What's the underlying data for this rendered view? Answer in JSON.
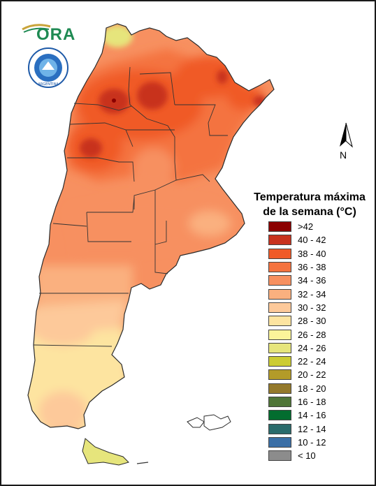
{
  "logo": {
    "text": "ORA",
    "icon": "ora-logo-icon"
  },
  "seal": {
    "icon": "smn-seal-icon",
    "text": "ARGENTINA"
  },
  "north_arrow": {
    "label": "N",
    "icon": "north-arrow-icon"
  },
  "legend": {
    "title_line1": "Temperatura máxima",
    "title_line2": "de la semana (°C)",
    "items": [
      {
        "label": ">42",
        "color": "#8b0000"
      },
      {
        "label": "40 - 42",
        "color": "#c8321e"
      },
      {
        "label": "38 - 40",
        "color": "#f05a28"
      },
      {
        "label": "36 - 38",
        "color": "#f4733f"
      },
      {
        "label": "34 - 36",
        "color": "#f79060"
      },
      {
        "label": "32 - 34",
        "color": "#fab07f"
      },
      {
        "label": "30 - 32",
        "color": "#fdc99a"
      },
      {
        "label": "28 - 30",
        "color": "#fde4a0"
      },
      {
        "label": "26 - 28",
        "color": "#fbf49a"
      },
      {
        "label": "24 - 26",
        "color": "#e6e57c"
      },
      {
        "label": "22 - 24",
        "color": "#cccc33"
      },
      {
        "label": "20 - 22",
        "color": "#b39b29"
      },
      {
        "label": "18 - 20",
        "color": "#94792b"
      },
      {
        "label": "16 - 18",
        "color": "#4f7537"
      },
      {
        "label": "14 - 16",
        "color": "#036d2f"
      },
      {
        "label": "12 - 14",
        "color": "#2a6b6b"
      },
      {
        "label": "10 - 12",
        "color": "#3b6fa6"
      },
      {
        "label": "< 10",
        "color": "#8c8c8c"
      }
    ]
  }
}
